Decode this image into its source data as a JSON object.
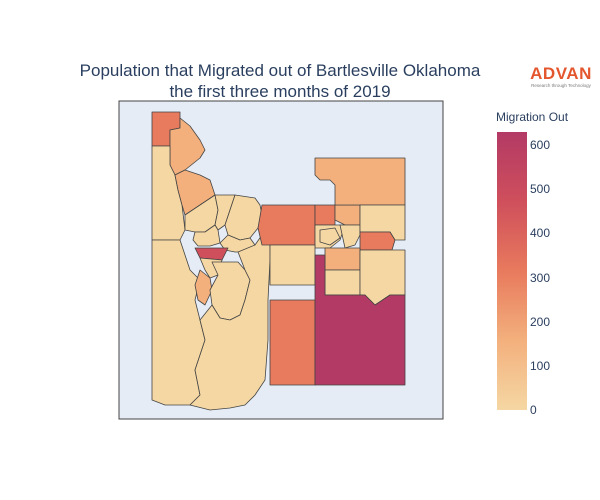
{
  "title_line1": "Population that Migrated out of Bartlesville Oklahoma",
  "title_line2": "the first three months of 2019",
  "logo": {
    "text": "ADVAN",
    "tagline": "Research through Technology"
  },
  "colorbar": {
    "title": "Migration Out",
    "min": 0,
    "max": 630,
    "ticks": [
      "0",
      "100",
      "200",
      "300",
      "400",
      "500",
      "600"
    ]
  },
  "colors": {
    "map_background": "#e5ecf6",
    "region_border": "#444444",
    "scale": [
      "#f5d7a3",
      "#f3b07d",
      "#e87a5d",
      "#cf4f5c",
      "#b33a65"
    ]
  }
}
